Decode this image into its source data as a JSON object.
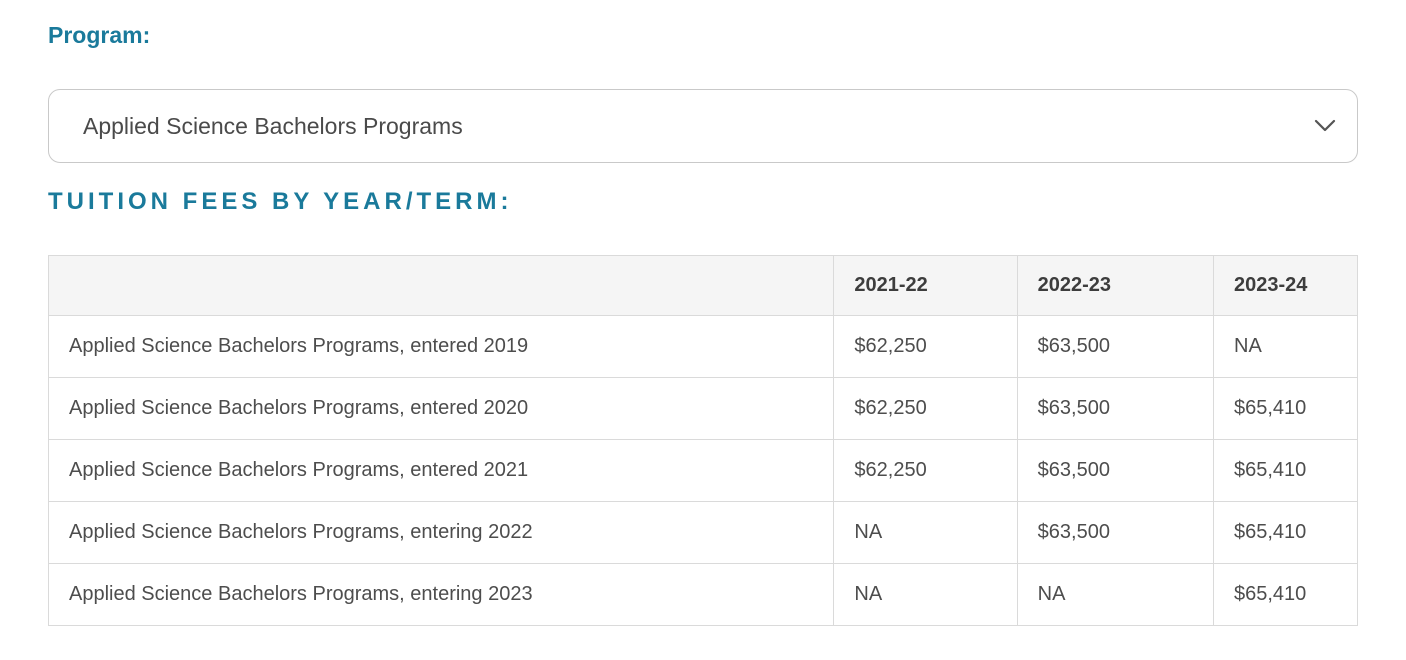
{
  "program_section": {
    "label": "Program:",
    "select": {
      "value": "Applied Science Bachelors Programs",
      "chevron_icon": "chevron-down"
    }
  },
  "tuition_section": {
    "heading": "TUITION FEES BY YEAR/TERM:",
    "table": {
      "columns": [
        "",
        "2021-22",
        "2022-23",
        "2023-24"
      ],
      "rows": [
        {
          "label": "Applied Science Bachelors Programs, entered 2019",
          "values": [
            "$62,250",
            "$63,500",
            "NA"
          ]
        },
        {
          "label": "Applied Science Bachelors Programs, entered 2020",
          "values": [
            "$62,250",
            "$63,500",
            "$65,410"
          ]
        },
        {
          "label": "Applied Science Bachelors Programs, entered 2021",
          "values": [
            "$62,250",
            "$63,500",
            "$65,410"
          ]
        },
        {
          "label": "Applied Science Bachelors Programs, entering 2022",
          "values": [
            "NA",
            "$63,500",
            "$65,410"
          ]
        },
        {
          "label": "Applied Science Bachelors Programs, entering 2023",
          "values": [
            "NA",
            "NA",
            "$65,410"
          ]
        }
      ]
    }
  },
  "colors": {
    "accent_teal": "#1a7a9b",
    "header_bg": "#f5f5f5",
    "table_border": "#dadada",
    "body_text": "#4d4d4d"
  }
}
